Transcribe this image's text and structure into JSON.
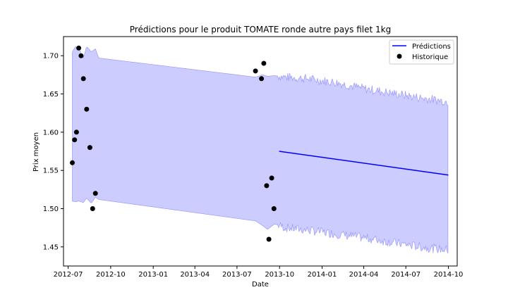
{
  "chart_data": {
    "type": "line",
    "title": "Prédictions pour le produit TOMATE ronde autre pays filet 1kg",
    "xlabel": "Date",
    "ylabel": "Prix moyen",
    "x_ticks": [
      "2012-07",
      "2012-10",
      "2013-01",
      "2013-04",
      "2013-07",
      "2013-10",
      "2014-01",
      "2014-04",
      "2014-07",
      "2014-10"
    ],
    "y_ticks": [
      "1.45",
      "1.50",
      "1.55",
      "1.60",
      "1.65",
      "1.70"
    ],
    "xlim": [
      "2012-06-21",
      "2014-10-20"
    ],
    "ylim": [
      1.425,
      1.725
    ],
    "legend_position": "top-right",
    "grid": false,
    "colors": {
      "prediction_line": "#0000ff",
      "band_fill": "#ccccff",
      "band_edge": "#9999ff",
      "points": "#000000"
    },
    "series": [
      {
        "name": "Prédictions",
        "kind": "line",
        "x": [
          "2013-09-30",
          "2014-10-01"
        ],
        "values": [
          1.575,
          1.544
        ]
      },
      {
        "name": "Historique",
        "kind": "scatter",
        "x": [
          "2012-07-10",
          "2012-07-15",
          "2012-07-19",
          "2012-07-24",
          "2012-07-29",
          "2012-08-03",
          "2012-08-10",
          "2012-08-17",
          "2012-08-23",
          "2012-08-29",
          "2013-08-10",
          "2013-08-23",
          "2013-08-28",
          "2013-09-03",
          "2013-09-08",
          "2013-09-14",
          "2013-09-19"
        ],
        "values": [
          1.56,
          1.59,
          1.6,
          1.71,
          1.7,
          1.67,
          1.63,
          1.58,
          1.5,
          1.52,
          1.68,
          1.67,
          1.69,
          1.53,
          1.46,
          1.54,
          1.5
        ]
      }
    ],
    "confidence_band": {
      "x": [
        "2012-07-10",
        "2012-07-17",
        "2012-07-24",
        "2012-08-03",
        "2012-08-10",
        "2012-08-20",
        "2012-08-29",
        "2012-09-05",
        "2013-08-10",
        "2013-08-25",
        "2013-09-05",
        "2013-09-20",
        "2013-10-15",
        "2013-11-30",
        "2014-01-31",
        "2014-04-01",
        "2014-06-01",
        "2014-08-01",
        "2014-10-01"
      ],
      "upper": [
        1.705,
        1.712,
        1.71,
        1.697,
        1.712,
        1.705,
        1.709,
        1.697,
        1.672,
        1.675,
        1.673,
        1.674,
        1.672,
        1.67,
        1.665,
        1.657,
        1.651,
        1.645,
        1.64
      ],
      "lower": [
        1.51,
        1.509,
        1.51,
        1.508,
        1.514,
        1.507,
        1.515,
        1.512,
        1.484,
        1.478,
        1.473,
        1.48,
        1.475,
        1.472,
        1.467,
        1.462,
        1.456,
        1.45,
        1.446
      ]
    }
  }
}
